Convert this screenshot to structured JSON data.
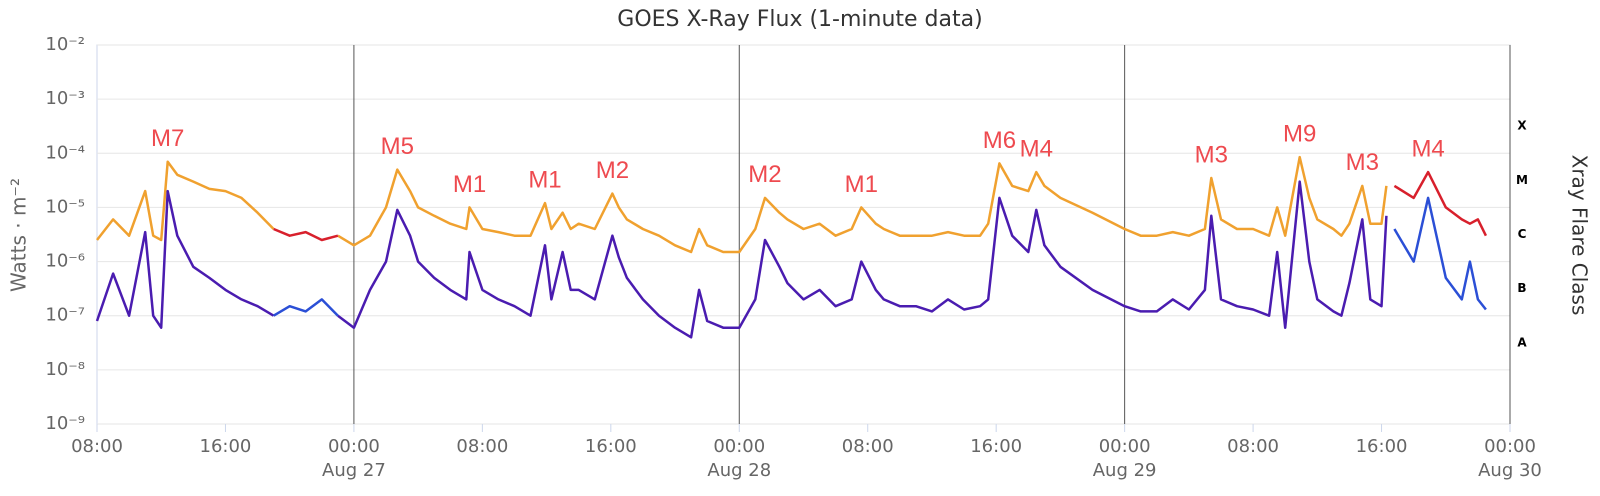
{
  "chart_data": {
    "type": "line",
    "title": "GOES X-Ray Flux (1-minute data)",
    "y_label": "Watts · m⁻²",
    "y2_label": "Xray Flare Class",
    "yscale": "log",
    "grid": true,
    "xlim": [
      8,
      96
    ],
    "ylim": [
      1e-09,
      0.01
    ],
    "xticks": [
      {
        "value": 8,
        "label": "08:00"
      },
      {
        "value": 16,
        "label": "16:00"
      },
      {
        "value": 24,
        "label": "00:00"
      },
      {
        "value": 32,
        "label": "08:00"
      },
      {
        "value": 40,
        "label": "16:00"
      },
      {
        "value": 48,
        "label": "00:00"
      },
      {
        "value": 56,
        "label": "08:00"
      },
      {
        "value": 64,
        "label": "16:00"
      },
      {
        "value": 72,
        "label": "00:00"
      },
      {
        "value": 80,
        "label": "08:00"
      },
      {
        "value": 88,
        "label": "16:00"
      },
      {
        "value": 96,
        "label": "00:00"
      }
    ],
    "x_dates": [
      {
        "value": 24,
        "label": "Aug 27"
      },
      {
        "value": 48,
        "label": "Aug 28"
      },
      {
        "value": 72,
        "label": "Aug 29"
      },
      {
        "value": 96,
        "label": "Aug 30"
      }
    ],
    "yticks": [
      {
        "value": 1e-09,
        "label": "10⁻⁹"
      },
      {
        "value": 1e-08,
        "label": "10⁻⁸"
      },
      {
        "value": 1e-07,
        "label": "10⁻⁷"
      },
      {
        "value": 1e-06,
        "label": "10⁻⁶"
      },
      {
        "value": 1e-05,
        "label": "10⁻⁵"
      },
      {
        "value": 0.0001,
        "label": "10⁻⁴"
      },
      {
        "value": 0.001,
        "label": "10⁻³"
      },
      {
        "value": 0.01,
        "label": "10⁻²"
      }
    ],
    "flare_classes": [
      {
        "value": 1e-08,
        "label": "A"
      },
      {
        "value": 1e-07,
        "label": "B"
      },
      {
        "value": 1e-06,
        "label": "C"
      },
      {
        "value": 1e-05,
        "label": "M"
      },
      {
        "value": 0.0001,
        "label": "X"
      }
    ],
    "annotations": [
      {
        "text": "M7",
        "x": 12.4,
        "y": 7e-05
      },
      {
        "text": "M5",
        "x": 26.7,
        "y": 5e-05
      },
      {
        "text": "M1",
        "x": 31.2,
        "y": 1e-05
      },
      {
        "text": "M1",
        "x": 35.9,
        "y": 1.2e-05
      },
      {
        "text": "M2",
        "x": 40.1,
        "y": 1.8e-05
      },
      {
        "text": "M2",
        "x": 49.6,
        "y": 1.5e-05
      },
      {
        "text": "M1",
        "x": 55.6,
        "y": 1e-05
      },
      {
        "text": "M6",
        "x": 64.2,
        "y": 6.5e-05
      },
      {
        "text": "M4",
        "x": 66.5,
        "y": 4.5e-05
      },
      {
        "text": "M3",
        "x": 77.4,
        "y": 3.5e-05
      },
      {
        "text": "M9",
        "x": 82.9,
        "y": 8.5e-05
      },
      {
        "text": "M3",
        "x": 86.8,
        "y": 2.5e-05
      },
      {
        "text": "M4",
        "x": 90.9,
        "y": 4.5e-05
      }
    ],
    "x": [
      8,
      9,
      10,
      11,
      11.5,
      12,
      12.4,
      13,
      14,
      15,
      16,
      17,
      18,
      19,
      20,
      21,
      22,
      23,
      24,
      25,
      26,
      26.7,
      27.5,
      28,
      29,
      30,
      31,
      31.2,
      32,
      33,
      34,
      35,
      35.9,
      36.3,
      37,
      37.5,
      38,
      39,
      40.1,
      40.5,
      41,
      42,
      43,
      44,
      45,
      45.5,
      46,
      47,
      48,
      49,
      49.6,
      50.5,
      51,
      52,
      53,
      54,
      55,
      55.6,
      56.5,
      57,
      58,
      59,
      60,
      61,
      62,
      63,
      63.5,
      64.2,
      65,
      66,
      66.5,
      67,
      68,
      70,
      72,
      73,
      74,
      75,
      76,
      77,
      77.4,
      78,
      79,
      80,
      81,
      81.5,
      82,
      82.9,
      83.5,
      84,
      85,
      85.5,
      86,
      86.8,
      87.3,
      88,
      88.3,
      88.8,
      90,
      90.9,
      92,
      93,
      93.5,
      94,
      94.5
    ],
    "series": [
      {
        "color": "#f0a12f",
        "values": [
          2.5e-06,
          6e-06,
          3e-06,
          2e-05,
          3e-06,
          2.5e-06,
          7e-05,
          4e-05,
          3e-05,
          2.2e-05,
          2e-05,
          1.5e-05,
          8e-06,
          4e-06,
          null,
          null,
          null,
          3e-06,
          2e-06,
          3e-06,
          1e-05,
          5e-05,
          2e-05,
          1e-05,
          7e-06,
          5e-06,
          4e-06,
          1e-05,
          4e-06,
          3.5e-06,
          3e-06,
          3e-06,
          1.2e-05,
          4e-06,
          8e-06,
          4e-06,
          5e-06,
          4e-06,
          1.8e-05,
          1e-05,
          6e-06,
          4e-06,
          3e-06,
          2e-06,
          1.5e-06,
          4e-06,
          2e-06,
          1.5e-06,
          1.5e-06,
          4e-06,
          1.5e-05,
          8e-06,
          6e-06,
          4e-06,
          5e-06,
          3e-06,
          4e-06,
          1e-05,
          5e-06,
          4e-06,
          3e-06,
          3e-06,
          3e-06,
          3.5e-06,
          3e-06,
          3e-06,
          5e-06,
          6.5e-05,
          2.5e-05,
          2e-05,
          4.5e-05,
          2.5e-05,
          1.5e-05,
          8e-06,
          4e-06,
          3e-06,
          3e-06,
          3.5e-06,
          3e-06,
          4e-06,
          3.5e-05,
          6e-06,
          4e-06,
          4e-06,
          3e-06,
          1e-05,
          3e-06,
          8.5e-05,
          1.5e-05,
          6e-06,
          4e-06,
          3e-06,
          5e-06,
          2.5e-05,
          5e-06,
          5e-06,
          2.5e-05,
          null,
          null,
          null,
          null,
          null,
          null,
          null,
          null
        ]
      },
      {
        "color": "#4a1cb0",
        "values": [
          8e-08,
          6e-07,
          1e-07,
          3.5e-06,
          1e-07,
          6e-08,
          2e-05,
          3e-06,
          8e-07,
          5e-07,
          3e-07,
          2e-07,
          1.5e-07,
          1e-07,
          null,
          null,
          null,
          1e-07,
          6e-08,
          3e-07,
          1e-06,
          9e-06,
          3e-06,
          1e-06,
          5e-07,
          3e-07,
          2e-07,
          1.5e-06,
          3e-07,
          2e-07,
          1.5e-07,
          1e-07,
          2e-06,
          2e-07,
          1.5e-06,
          3e-07,
          3e-07,
          2e-07,
          3e-06,
          1.2e-06,
          5e-07,
          2e-07,
          1e-07,
          6e-08,
          4e-08,
          3e-07,
          8e-08,
          6e-08,
          6e-08,
          2e-07,
          2.5e-06,
          8e-07,
          4e-07,
          2e-07,
          3e-07,
          1.5e-07,
          2e-07,
          1e-06,
          3e-07,
          2e-07,
          1.5e-07,
          1.5e-07,
          1.2e-07,
          2e-07,
          1.3e-07,
          1.5e-07,
          2e-07,
          1.5e-05,
          3e-06,
          1.5e-06,
          9e-06,
          2e-06,
          8e-07,
          3e-07,
          1.5e-07,
          1.2e-07,
          1.2e-07,
          2e-07,
          1.3e-07,
          3e-07,
          7e-06,
          2e-07,
          1.5e-07,
          1.3e-07,
          1e-07,
          1.5e-06,
          6e-08,
          3e-05,
          1e-06,
          2e-07,
          1.2e-07,
          1e-07,
          4e-07,
          6e-06,
          2e-07,
          1.5e-07,
          7e-06,
          null,
          null,
          null,
          null,
          null,
          null,
          null,
          null
        ]
      },
      {
        "color": "#d8202c",
        "values": [
          null,
          null,
          null,
          null,
          null,
          null,
          null,
          null,
          null,
          null,
          null,
          null,
          null,
          4e-06,
          3e-06,
          3.5e-06,
          2.5e-06,
          3e-06,
          null,
          null,
          null,
          null,
          null,
          null,
          null,
          null,
          null,
          null,
          null,
          null,
          null,
          null,
          null,
          null,
          null,
          null,
          null,
          null,
          null,
          null,
          null,
          null,
          null,
          null,
          null,
          null,
          null,
          null,
          null,
          null,
          null,
          null,
          null,
          null,
          null,
          null,
          null,
          null,
          null,
          null,
          null,
          null,
          null,
          null,
          null,
          null,
          null,
          null,
          null,
          null,
          null,
          null,
          null,
          null,
          null,
          null,
          null,
          null,
          null,
          null,
          null,
          null,
          null,
          null,
          null,
          null,
          null,
          null,
          null,
          null,
          null,
          null,
          null,
          null,
          null,
          null,
          null,
          2.5e-05,
          1.5e-05,
          4.5e-05,
          1e-05,
          6e-06,
          5e-06,
          6e-06,
          3e-06
        ]
      },
      {
        "color": "#2b4fd6",
        "values": [
          null,
          null,
          null,
          null,
          null,
          null,
          null,
          null,
          null,
          null,
          null,
          null,
          null,
          1e-07,
          1.5e-07,
          1.2e-07,
          2e-07,
          1e-07,
          null,
          null,
          null,
          null,
          null,
          null,
          null,
          null,
          null,
          null,
          null,
          null,
          null,
          null,
          null,
          null,
          null,
          null,
          null,
          null,
          null,
          null,
          null,
          null,
          null,
          null,
          null,
          null,
          null,
          null,
          null,
          null,
          null,
          null,
          null,
          null,
          null,
          null,
          null,
          null,
          null,
          null,
          null,
          null,
          null,
          null,
          null,
          null,
          null,
          null,
          null,
          null,
          null,
          null,
          null,
          null,
          null,
          null,
          null,
          null,
          null,
          null,
          null,
          null,
          null,
          null,
          null,
          null,
          null,
          null,
          null,
          null,
          null,
          null,
          null,
          null,
          null,
          null,
          null,
          4e-06,
          1e-06,
          1.5e-05,
          5e-07,
          2e-07,
          1e-06,
          2e-07,
          1.3e-07
        ]
      }
    ]
  }
}
